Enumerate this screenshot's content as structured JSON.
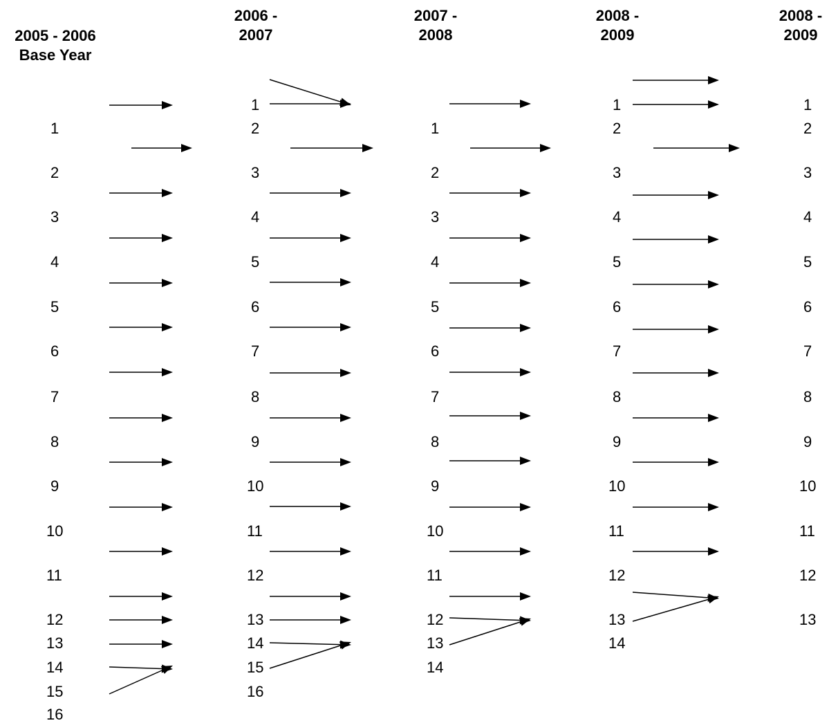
{
  "columns": [
    {
      "header": [
        "2005 - 2006",
        "Base Year"
      ],
      "items": [
        "1",
        "2",
        "3",
        "4",
        "5",
        "6",
        "7",
        "8",
        "9",
        "10",
        "11",
        "12",
        "13",
        "14",
        "15",
        "16"
      ]
    },
    {
      "header": [
        "2006 -",
        "2007"
      ],
      "items": [
        "1",
        "2",
        "3",
        "4",
        "5",
        "6",
        "7",
        "8",
        "9",
        "10",
        "11",
        "12",
        "13",
        "14",
        "15",
        "16"
      ]
    },
    {
      "header": [
        "2007 -",
        "2008"
      ],
      "items": [
        "1",
        "2",
        "3",
        "4",
        "5",
        "6",
        "7",
        "8",
        "9",
        "10",
        "11",
        "12",
        "13",
        "14"
      ]
    },
    {
      "header": [
        "2008 -",
        "2009"
      ],
      "items": [
        "1",
        "2",
        "3",
        "4",
        "5",
        "6",
        "7",
        "8",
        "9",
        "10",
        "11",
        "12",
        "13",
        "14"
      ]
    },
    {
      "header": [
        "2008 -",
        "2009"
      ],
      "items": [
        "1",
        "2",
        "3",
        "4",
        "5",
        "6",
        "7",
        "8",
        "9",
        "10",
        "11",
        "12",
        "13"
      ]
    }
  ],
  "colors": {
    "ink": "#000000",
    "background": "#ffffff"
  }
}
